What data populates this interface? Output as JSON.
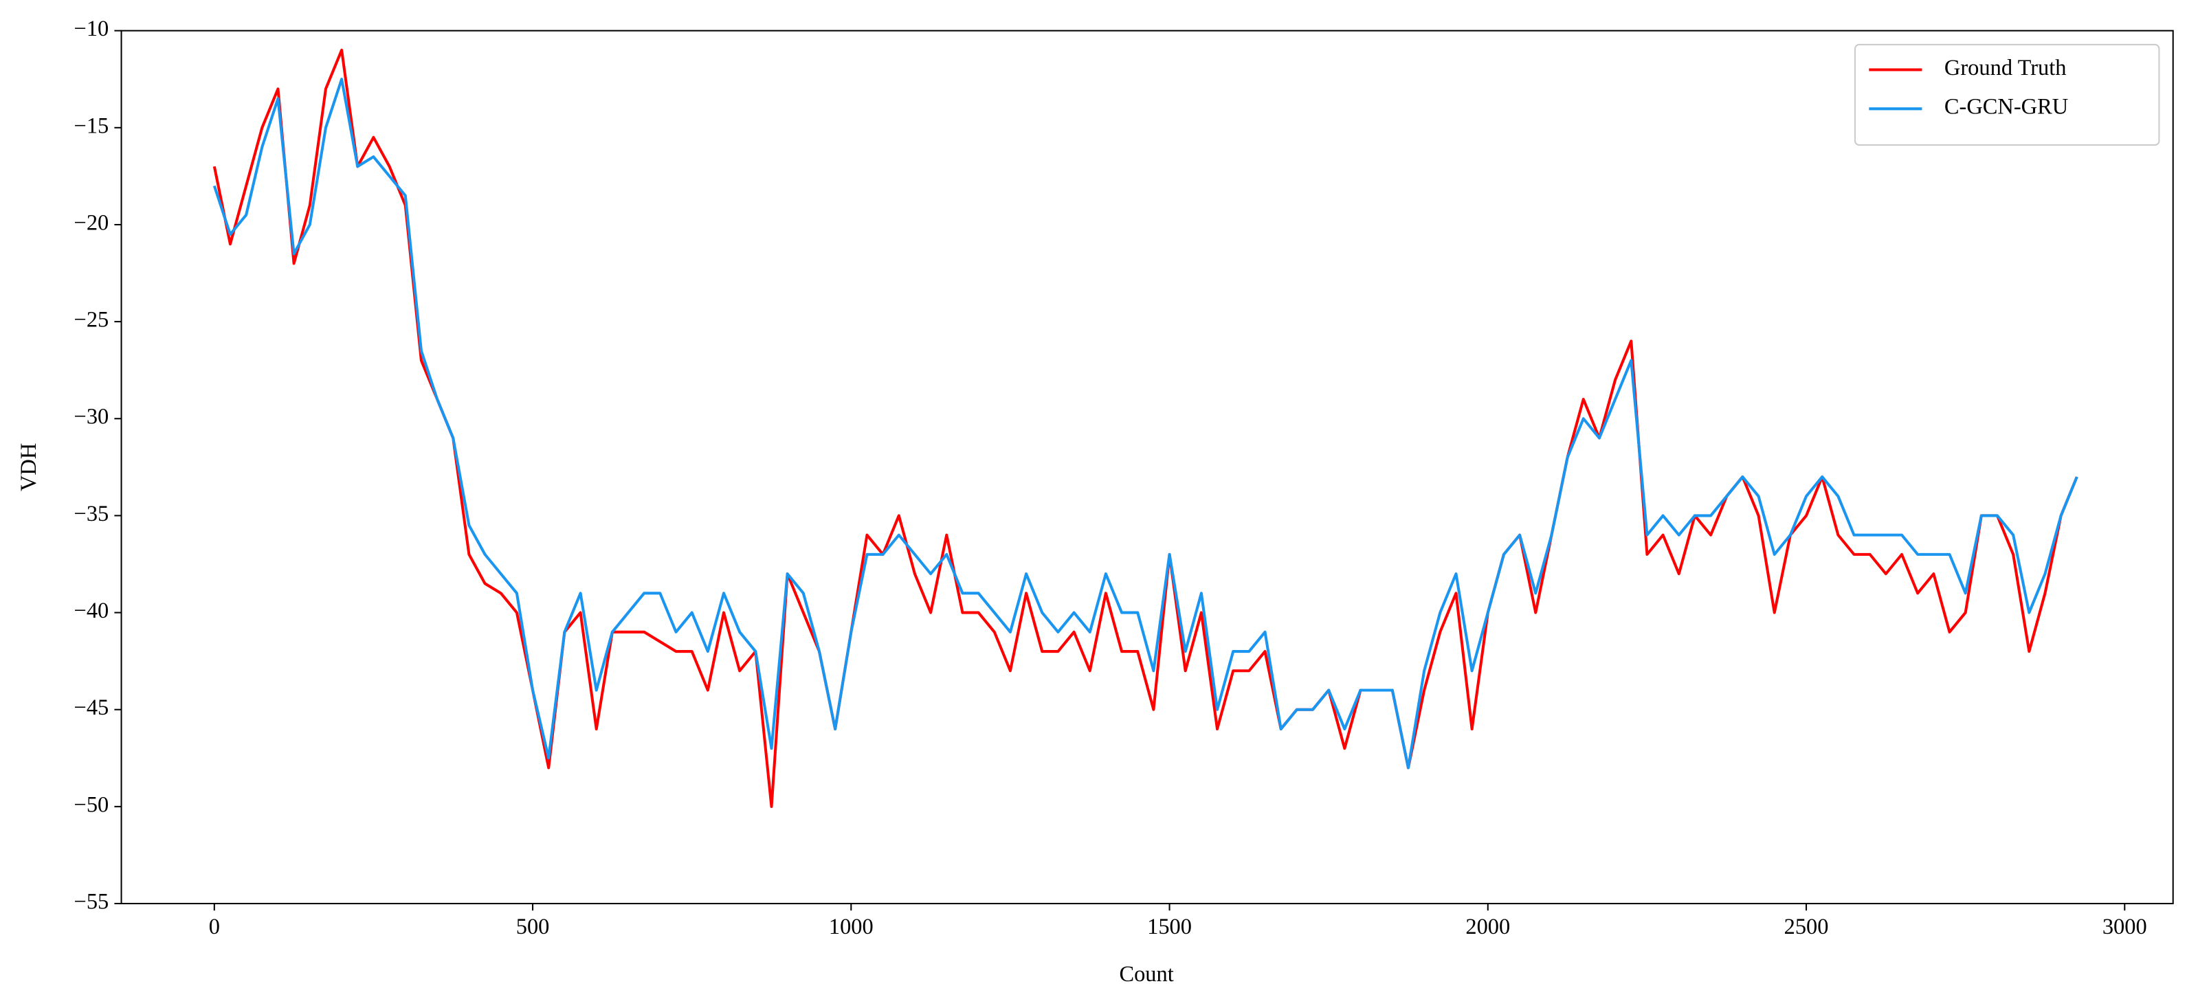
{
  "chart_data": {
    "type": "line",
    "xlabel": "Count",
    "ylabel": "VDH",
    "xlim": [
      -146,
      3076
    ],
    "ylim": [
      -55,
      -10
    ],
    "xticks": [
      0,
      500,
      1000,
      1500,
      2000,
      2500,
      3000
    ],
    "yticks": [
      {
        "value": -10,
        "label": "−10"
      },
      {
        "value": -15,
        "label": "−15"
      },
      {
        "value": -20,
        "label": "−20"
      },
      {
        "value": -25,
        "label": "−25"
      },
      {
        "value": -30,
        "label": "−30"
      },
      {
        "value": -35,
        "label": "−35"
      },
      {
        "value": -40,
        "label": "−40"
      },
      {
        "value": -45,
        "label": "−45"
      },
      {
        "value": -50,
        "label": "−50"
      },
      {
        "value": -55,
        "label": "−55"
      }
    ],
    "legend": "upper right",
    "x": [
      0,
      25,
      50,
      75,
      100,
      125,
      150,
      175,
      200,
      225,
      250,
      275,
      300,
      325,
      350,
      375,
      400,
      425,
      450,
      475,
      500,
      525,
      550,
      575,
      600,
      625,
      650,
      675,
      700,
      725,
      750,
      775,
      800,
      825,
      850,
      875,
      900,
      925,
      950,
      975,
      1000,
      1025,
      1050,
      1075,
      1100,
      1125,
      1150,
      1175,
      1200,
      1225,
      1250,
      1275,
      1300,
      1325,
      1350,
      1375,
      1400,
      1425,
      1450,
      1475,
      1500,
      1525,
      1550,
      1575,
      1600,
      1625,
      1650,
      1675,
      1700,
      1725,
      1750,
      1775,
      1800,
      1825,
      1850,
      1875,
      1900,
      1925,
      1950,
      1975,
      2000,
      2025,
      2050,
      2075,
      2100,
      2125,
      2150,
      2175,
      2200,
      2225,
      2250,
      2275,
      2300,
      2325,
      2350,
      2375,
      2400,
      2425,
      2450,
      2475,
      2500,
      2525,
      2550,
      2575,
      2600,
      2625,
      2650,
      2675,
      2700,
      2725,
      2750,
      2775,
      2800,
      2825,
      2850,
      2875,
      2900,
      2925
    ],
    "series": [
      {
        "name": "Ground Truth",
        "color": "#ff0000",
        "values": [
          -17,
          -21,
          -18,
          -15,
          -13,
          -22,
          -19,
          -13,
          -11,
          -17,
          -15.5,
          -17,
          -19,
          -27,
          -29,
          -31,
          -37,
          -38.5,
          -39,
          -40,
          -44,
          -48,
          -41,
          -40,
          -46,
          -41,
          -41,
          -41,
          -41.5,
          -42,
          -42,
          -44,
          -40,
          -43,
          -42,
          -50,
          -38,
          -40,
          -42,
          -46,
          -41,
          -36,
          -37,
          -35,
          -38,
          -40,
          -36,
          -40,
          -40,
          -41,
          -43,
          -39,
          -42,
          -42,
          -41,
          -43,
          -39,
          -42,
          -42,
          -45,
          -37,
          -43,
          -40,
          -46,
          -43,
          -43,
          -42,
          -46,
          -45,
          -45,
          -44,
          -47,
          -44,
          -44,
          -44,
          -48,
          -44,
          -41,
          -39,
          -46,
          -40,
          -37,
          -36,
          -40,
          -36,
          -32,
          -29,
          -31,
          -28,
          -26,
          -37,
          -36,
          -38,
          -35,
          -36,
          -34,
          -33,
          -35,
          -40,
          -36,
          -35,
          -33,
          -36,
          -37,
          -37,
          -38,
          -37,
          -39,
          -38,
          -41,
          -40,
          -35,
          -35,
          -37,
          -42,
          -39,
          -35,
          -33
        ]
      },
      {
        "name": "C-GCN-GRU",
        "color": "#1a96f0",
        "values": [
          -18,
          -20.5,
          -19.5,
          -16,
          -13.5,
          -21.5,
          -20,
          -15,
          -12.5,
          -17,
          -16.5,
          -17.5,
          -18.5,
          -26.5,
          -29,
          -31,
          -35.5,
          -37,
          -38,
          -39,
          -44,
          -47.5,
          -41,
          -39,
          -44,
          -41,
          -40,
          -39,
          -39,
          -41,
          -40,
          -42,
          -39,
          -41,
          -42,
          -47,
          -38,
          -39,
          -42,
          -46,
          -41,
          -37,
          -37,
          -36,
          -37,
          -38,
          -37,
          -39,
          -39,
          -40,
          -41,
          -38,
          -40,
          -41,
          -40,
          -41,
          -38,
          -40,
          -40,
          -43,
          -37,
          -42,
          -39,
          -45,
          -42,
          -42,
          -41,
          -46,
          -45,
          -45,
          -44,
          -46,
          -44,
          -44,
          -44,
          -48,
          -43,
          -40,
          -38,
          -43,
          -40,
          -37,
          -36,
          -39,
          -36,
          -32,
          -30,
          -31,
          -29,
          -27,
          -36,
          -35,
          -36,
          -35,
          -35,
          -34,
          -33,
          -34,
          -37,
          -36,
          -34,
          -33,
          -34,
          -36,
          -36,
          -36,
          -36,
          -37,
          -37,
          -37,
          -39,
          -35,
          -35,
          -36,
          -40,
          -38,
          -35,
          -33
        ]
      }
    ]
  }
}
